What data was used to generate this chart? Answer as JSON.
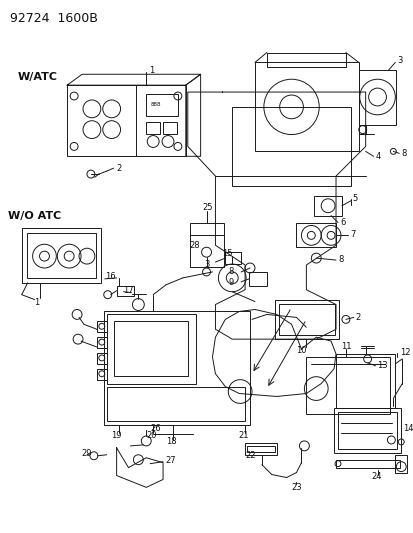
{
  "title": "92724  1600B",
  "bg_color": "#ffffff",
  "line_color": "#1a1a1a",
  "text_color": "#111111",
  "fig_width": 4.14,
  "fig_height": 5.33,
  "dpi": 100
}
